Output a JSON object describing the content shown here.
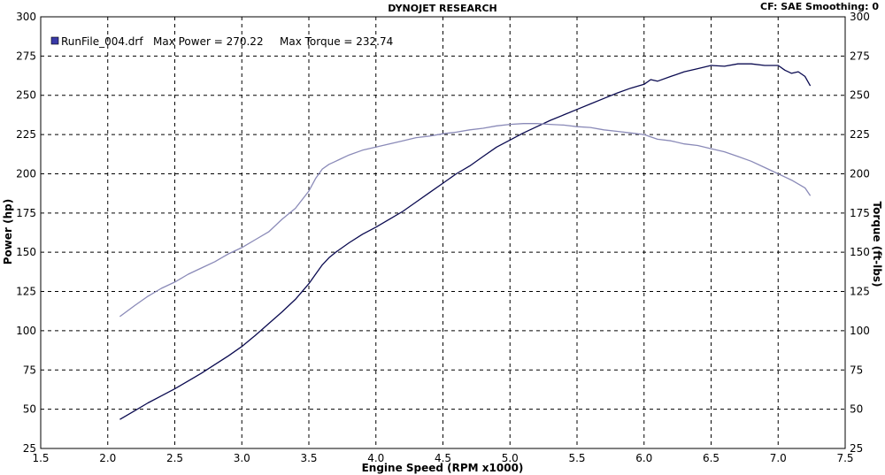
{
  "header": {
    "title": "DYNOJET RESEARCH",
    "settings": "CF: SAE  Smoothing: 0"
  },
  "legend": {
    "run_label": "RunFile_004.drf",
    "max_power_label": "Max Power = 270.22",
    "max_torque_label": "Max Torque = 232.74",
    "swatch_color": "#3a3aa8"
  },
  "chart_data": {
    "type": "line",
    "xlabel": "Engine Speed (RPM x1000)",
    "ylabel_left": "Power (hp)",
    "ylabel_right": "Torque (ft-lbs)",
    "xlim": [
      1.5,
      7.5
    ],
    "ylim": [
      25,
      300
    ],
    "xticks": [
      "1.5",
      "2.0",
      "2.5",
      "3.0",
      "3.5",
      "4.0",
      "4.5",
      "5.0",
      "5.5",
      "6.0",
      "6.5",
      "7.0",
      "7.5"
    ],
    "yticks": [
      "25",
      "50",
      "75",
      "100",
      "125",
      "150",
      "175",
      "200",
      "225",
      "250",
      "275",
      "300"
    ],
    "grid": true,
    "series": [
      {
        "name": "Power (hp)",
        "color": "#0a0a50",
        "points": [
          [
            2.09,
            43.5
          ],
          [
            2.2,
            49
          ],
          [
            2.3,
            54
          ],
          [
            2.4,
            58.5
          ],
          [
            2.5,
            63
          ],
          [
            2.6,
            68
          ],
          [
            2.7,
            73
          ],
          [
            2.8,
            78.5
          ],
          [
            2.9,
            84
          ],
          [
            3.0,
            90
          ],
          [
            3.1,
            97
          ],
          [
            3.2,
            104.5
          ],
          [
            3.3,
            112
          ],
          [
            3.4,
            120
          ],
          [
            3.5,
            130
          ],
          [
            3.55,
            136
          ],
          [
            3.6,
            142
          ],
          [
            3.65,
            146.5
          ],
          [
            3.7,
            150
          ],
          [
            3.8,
            156
          ],
          [
            3.9,
            161.5
          ],
          [
            4.0,
            166
          ],
          [
            4.1,
            171
          ],
          [
            4.2,
            176
          ],
          [
            4.3,
            182
          ],
          [
            4.4,
            188
          ],
          [
            4.5,
            194
          ],
          [
            4.6,
            200
          ],
          [
            4.7,
            205
          ],
          [
            4.8,
            211
          ],
          [
            4.9,
            217
          ],
          [
            5.0,
            221.5
          ],
          [
            5.1,
            226
          ],
          [
            5.2,
            230
          ],
          [
            5.3,
            234
          ],
          [
            5.4,
            237.5
          ],
          [
            5.5,
            241
          ],
          [
            5.6,
            244.5
          ],
          [
            5.7,
            248
          ],
          [
            5.8,
            251.5
          ],
          [
            5.9,
            254.5
          ],
          [
            6.0,
            257
          ],
          [
            6.05,
            260
          ],
          [
            6.1,
            259
          ],
          [
            6.2,
            262
          ],
          [
            6.3,
            265
          ],
          [
            6.4,
            267
          ],
          [
            6.5,
            269
          ],
          [
            6.6,
            268.5
          ],
          [
            6.7,
            270
          ],
          [
            6.8,
            270
          ],
          [
            6.9,
            269
          ],
          [
            7.0,
            269
          ],
          [
            7.05,
            266
          ],
          [
            7.1,
            264
          ],
          [
            7.15,
            265
          ],
          [
            7.2,
            262
          ],
          [
            7.24,
            256
          ]
        ]
      },
      {
        "name": "Torque (ft-lbs)",
        "color": "#8a8ab8",
        "points": [
          [
            2.09,
            109
          ],
          [
            2.2,
            116
          ],
          [
            2.3,
            122
          ],
          [
            2.4,
            127
          ],
          [
            2.5,
            131
          ],
          [
            2.6,
            136
          ],
          [
            2.7,
            140
          ],
          [
            2.8,
            144
          ],
          [
            2.9,
            149
          ],
          [
            3.0,
            153
          ],
          [
            3.1,
            158
          ],
          [
            3.2,
            163
          ],
          [
            3.3,
            171
          ],
          [
            3.4,
            178
          ],
          [
            3.5,
            189
          ],
          [
            3.55,
            197
          ],
          [
            3.6,
            203
          ],
          [
            3.65,
            206
          ],
          [
            3.7,
            208
          ],
          [
            3.8,
            212
          ],
          [
            3.9,
            215
          ],
          [
            4.0,
            217
          ],
          [
            4.1,
            219
          ],
          [
            4.2,
            221
          ],
          [
            4.3,
            223
          ],
          [
            4.4,
            224
          ],
          [
            4.5,
            225.5
          ],
          [
            4.6,
            226.5
          ],
          [
            4.7,
            228
          ],
          [
            4.8,
            229
          ],
          [
            4.9,
            230.5
          ],
          [
            5.0,
            231.5
          ],
          [
            5.1,
            232
          ],
          [
            5.2,
            232
          ],
          [
            5.3,
            231.5
          ],
          [
            5.4,
            231
          ],
          [
            5.5,
            230
          ],
          [
            5.6,
            229.5
          ],
          [
            5.7,
            228
          ],
          [
            5.8,
            227
          ],
          [
            5.9,
            226
          ],
          [
            6.0,
            225
          ],
          [
            6.1,
            222
          ],
          [
            6.2,
            221
          ],
          [
            6.3,
            219
          ],
          [
            6.4,
            218
          ],
          [
            6.5,
            216
          ],
          [
            6.6,
            214
          ],
          [
            6.7,
            211
          ],
          [
            6.8,
            208
          ],
          [
            6.9,
            204
          ],
          [
            7.0,
            200
          ],
          [
            7.1,
            196
          ],
          [
            7.2,
            191
          ],
          [
            7.24,
            186
          ]
        ]
      }
    ]
  }
}
